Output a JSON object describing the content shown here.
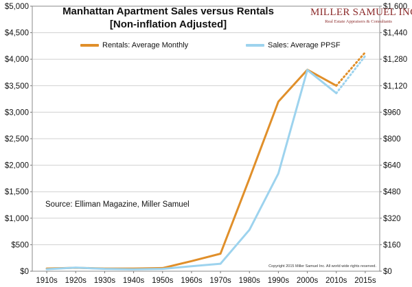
{
  "chart_data": {
    "type": "line",
    "title": "Manhattan Apartment Sales versus Rentals",
    "subtitle": "[Non-inflation Adjusted]",
    "categories": [
      "1910s",
      "1920s",
      "1930s",
      "1940s",
      "1950s",
      "1960s",
      "1970s",
      "1980s",
      "1990s",
      "2000s",
      "2010s",
      "2015s"
    ],
    "y_left": {
      "ylim": [
        0,
        5000
      ],
      "ticks": [
        "$0",
        "$500",
        "$1,000",
        "$1,500",
        "$2,000",
        "$2,500",
        "$3,000",
        "$3,500",
        "$4,000",
        "$4,500",
        "$5,000"
      ]
    },
    "y_right": {
      "ylim": [
        0,
        1600
      ],
      "ticks": [
        "$0",
        "$160",
        "$320",
        "$480",
        "$640",
        "$800",
        "$960",
        "$1,120",
        "$1,280",
        "$1,440",
        "$1,600"
      ]
    },
    "series": [
      {
        "name": "Rentals: Average Monthly",
        "axis": "left",
        "color": "#E08F2A",
        "values": [
          50,
          65,
          50,
          50,
          60,
          190,
          330,
          1750,
          3200,
          3800,
          3500,
          4130
        ],
        "projected_from_index": 10
      },
      {
        "name": "Sales: Average PPSF",
        "axis": "right",
        "color": "#9DD3EE",
        "values": [
          12,
          22,
          14,
          11,
          14,
          30,
          45,
          250,
          590,
          1215,
          1075,
          1300
        ],
        "projected_from_index": 10
      }
    ],
    "source_note": "Source: Elliman Magazine, Miller Samuel",
    "copyright": "Copyright 2015 Miller Samuel Inc.  All world wide rights reserved."
  },
  "logo": {
    "name": "MILLER SAMUEL INC.",
    "tagline": "Real Estate Appraisers & Consultants"
  }
}
